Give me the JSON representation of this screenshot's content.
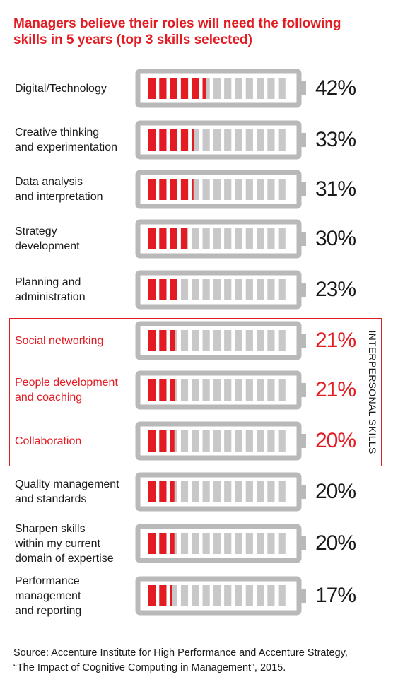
{
  "title": {
    "line1": "Managers believe their roles will need the following",
    "line2": "skills in 5 years (top 3 skills selected)"
  },
  "group_label": "INTERPERSONAL SKILLS",
  "source": {
    "line1": "Source: Accenture Institute for High Performance and Accenture Strategy,",
    "line2": "“The Impact of Cognitive Computing in Management”, 2015."
  },
  "colors": {
    "accent": "#e31c23",
    "battery_gray": "#b9b9b9",
    "empty_cell": "#c8c8c8",
    "text": "#1a1a1a"
  },
  "chart_data": {
    "type": "bar",
    "title": "Managers believe their roles will need the following skills in 5 years (top 3 skills selected)",
    "value_unit": "%",
    "categories": [
      "Digital/Technology",
      "Creative thinking and experimentation",
      "Data analysis and interpretation",
      "Strategy development",
      "Planning and administration",
      "Social networking",
      "People development and coaching",
      "Collaboration",
      "Quality management and standards",
      "Sharpen skills within my current domain of expertise",
      "Performance management and reporting"
    ],
    "values": [
      42,
      33,
      31,
      30,
      23,
      21,
      21,
      20,
      20,
      20,
      17
    ],
    "ylim": [
      0,
      100
    ],
    "highlight_group": {
      "name": "INTERPERSONAL SKILLS",
      "categories": [
        "Social networking",
        "People development and coaching",
        "Collaboration"
      ]
    },
    "rows": [
      {
        "label_lines": [
          "Digital/Technology"
        ],
        "value": 42,
        "display": "42%",
        "highlight": false
      },
      {
        "label_lines": [
          "Creative thinking",
          "and experimentation"
        ],
        "value": 33,
        "display": "33%",
        "highlight": false
      },
      {
        "label_lines": [
          "Data analysis",
          "and interpretation"
        ],
        "value": 31,
        "display": "31%",
        "highlight": false
      },
      {
        "label_lines": [
          "Strategy",
          "development"
        ],
        "value": 30,
        "display": "30%",
        "highlight": false
      },
      {
        "label_lines": [
          "Planning and",
          "administration"
        ],
        "value": 23,
        "display": "23%",
        "highlight": false
      },
      {
        "label_lines": [
          "Social networking"
        ],
        "value": 21,
        "display": "21%",
        "highlight": true
      },
      {
        "label_lines": [
          "People development",
          "and coaching"
        ],
        "value": 21,
        "display": "21%",
        "highlight": true
      },
      {
        "label_lines": [
          "Collaboration"
        ],
        "value": 20,
        "display": "20%",
        "highlight": true
      },
      {
        "label_lines": [
          "Quality management",
          "and standards"
        ],
        "value": 20,
        "display": "20%",
        "highlight": false
      },
      {
        "label_lines": [
          "Sharpen skills",
          "within my current",
          "domain of expertise"
        ],
        "value": 20,
        "display": "20%",
        "highlight": false
      },
      {
        "label_lines": [
          "Performance",
          "management",
          "and reporting"
        ],
        "value": 17,
        "display": "17%",
        "highlight": false
      }
    ]
  }
}
